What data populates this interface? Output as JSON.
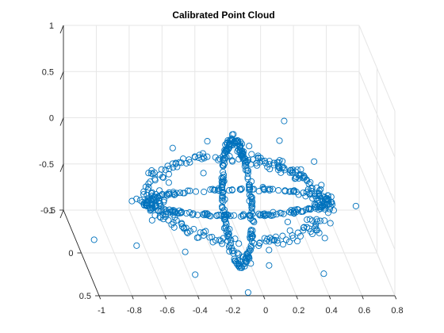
{
  "chart_data": {
    "type": "scatter",
    "projection": "3d",
    "title": "Calibrated Point Cloud",
    "xlabel": "",
    "ylabel": "",
    "zlabel": "",
    "xlim": [
      -1,
      0.8
    ],
    "ylim": [
      -0.5,
      0.5
    ],
    "zlim": [
      -1,
      1
    ],
    "x_ticks": [
      "-1",
      "-0.8",
      "-0.6",
      "-0.4",
      "-0.2",
      "0",
      "0.2",
      "0.4",
      "0.6",
      "0.8"
    ],
    "y_ticks": [
      "-0.5",
      "0",
      "0.5"
    ],
    "z_ticks": [
      "-1",
      "-0.5",
      "0",
      "0.5",
      "1"
    ],
    "grid": true,
    "box": false,
    "marker": "circle",
    "marker_color": "#0072BD",
    "description_of_points": "points lie on three mutually orthogonal unit-radius great circles of a sphere centred near (-0.05, 0, -0.45) with radius ~0.55 and radial noise",
    "points": [
      [
        -0.6,
        0.0,
        -0.45
      ],
      [
        -0.58,
        0.05,
        -0.3
      ],
      [
        -0.55,
        -0.1,
        -0.2
      ],
      [
        -0.5,
        0.15,
        -0.1
      ],
      [
        -0.4,
        -0.2,
        -0.05
      ],
      [
        -0.3,
        0.2,
        0.05
      ],
      [
        -0.2,
        -0.15,
        0.07
      ],
      [
        -0.05,
        0.0,
        0.1
      ],
      [
        0.1,
        0.15,
        0.07
      ],
      [
        0.25,
        -0.2,
        0.03
      ],
      [
        0.35,
        0.2,
        -0.05
      ],
      [
        0.45,
        -0.15,
        -0.15
      ],
      [
        0.5,
        0.1,
        -0.3
      ],
      [
        0.52,
        0.0,
        -0.45
      ],
      [
        0.5,
        -0.1,
        -0.6
      ],
      [
        0.45,
        0.15,
        -0.7
      ],
      [
        0.3,
        -0.2,
        -0.85
      ],
      [
        0.1,
        0.2,
        -0.95
      ],
      [
        -0.05,
        0.0,
        -1.0
      ],
      [
        -0.2,
        -0.2,
        -0.95
      ],
      [
        -0.4,
        0.15,
        -0.85
      ],
      [
        -0.5,
        -0.1,
        -0.7
      ],
      [
        -0.58,
        0.05,
        -0.6
      ],
      [
        -0.9,
        -0.1,
        -0.95
      ],
      [
        -0.75,
        0.4,
        -0.55
      ],
      [
        0.0,
        0.1,
        0.25
      ],
      [
        0.3,
        -0.3,
        0.15
      ],
      [
        0.65,
        0.1,
        -0.4
      ],
      [
        -0.05,
        0.3,
        -1.15
      ],
      [
        0.4,
        0.35,
        -0.9
      ],
      [
        -0.35,
        0.2,
        -1.05
      ]
    ]
  }
}
